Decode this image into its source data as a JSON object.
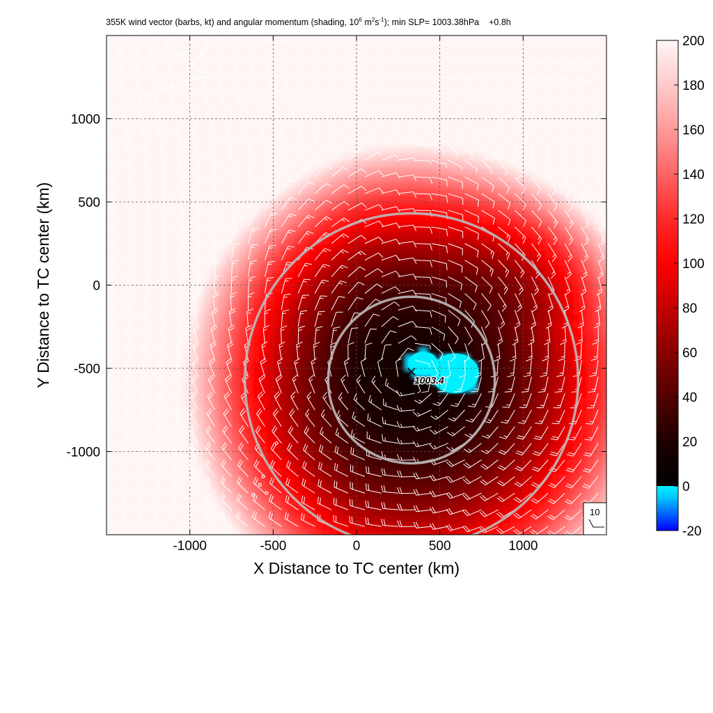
{
  "title": {
    "prefix": "355K wind vector (barbs, kt) and angular momentum (shading, 10",
    "exp1": "6",
    "mid1": " m",
    "exp2": "2",
    "mid2": "s",
    "exp3": "-1",
    "suffix": "); min SLP= 1003.38hPa",
    "time": "+0.8h"
  },
  "chart_data": {
    "type": "heatmap",
    "xlabel": "X Distance to TC center (km)",
    "ylabel": "Y Distance to TC center (km)",
    "xlim": [
      -1500,
      1500
    ],
    "ylim": [
      -1500,
      1500
    ],
    "xticks": [
      -1000,
      -500,
      0,
      500,
      1000
    ],
    "yticks": [
      -1000,
      -500,
      0,
      500,
      1000
    ],
    "xtick_labels": [
      "-1000",
      "-500",
      "0",
      "500",
      "1000"
    ],
    "ytick_labels": [
      "-1000",
      "-500",
      "0",
      "500",
      "1000"
    ],
    "grid": "dashed",
    "colorbar": {
      "ticks": [
        -20,
        0,
        20,
        40,
        60,
        80,
        100,
        120,
        140,
        160,
        180,
        200
      ],
      "tick_labels": [
        "-20",
        "0",
        "20",
        "40",
        "60",
        "80",
        "100",
        "120",
        "140",
        "160",
        "180",
        "200"
      ],
      "stops": [
        {
          "v": -20,
          "c": "#0000ff"
        },
        {
          "v": -5,
          "c": "#00c8ff"
        },
        {
          "v": 0,
          "c": "#00f0ff"
        },
        {
          "v": 0.01,
          "c": "#000000"
        },
        {
          "v": 20,
          "c": "#1e0000"
        },
        {
          "v": 40,
          "c": "#520000"
        },
        {
          "v": 60,
          "c": "#8a0000"
        },
        {
          "v": 80,
          "c": "#c40000"
        },
        {
          "v": 100,
          "c": "#ff0000"
        },
        {
          "v": 120,
          "c": "#ff2a2a"
        },
        {
          "v": 140,
          "c": "#ff6464"
        },
        {
          "v": 160,
          "c": "#ff9a9a"
        },
        {
          "v": 180,
          "c": "#ffcaca"
        },
        {
          "v": 200,
          "c": "#fff5f5"
        }
      ]
    },
    "min_slp_center": {
      "x": 330,
      "y": -520,
      "label": "1003.4"
    },
    "range_rings_km": [
      500,
      1000
    ],
    "ring_center": {
      "x": 330,
      "y": -570
    },
    "barb_reference_label": "10"
  }
}
